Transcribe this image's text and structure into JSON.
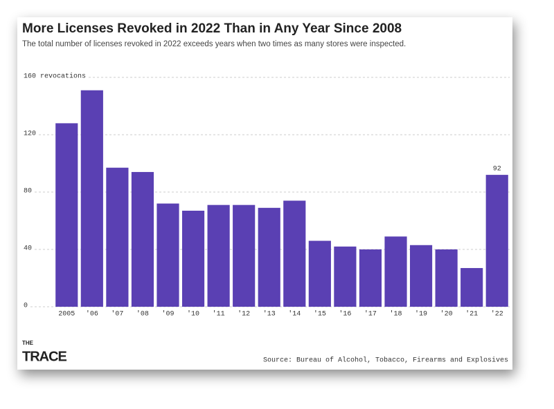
{
  "chart_data": {
    "type": "bar",
    "title": "More Licenses Revoked in 2022 Than in Any Year Since 2008",
    "subtitle": "The total number of licenses revoked in 2022 exceeds years when two times as many stores were inspected.",
    "categories": [
      "2005",
      "'06",
      "'07",
      "'08",
      "'09",
      "'10",
      "'11",
      "'12",
      "'13",
      "'14",
      "'15",
      "'16",
      "'17",
      "'18",
      "'19",
      "'20",
      "'21",
      "'22"
    ],
    "values": [
      128,
      151,
      97,
      94,
      72,
      67,
      71,
      71,
      69,
      74,
      46,
      42,
      40,
      49,
      43,
      40,
      27,
      92
    ],
    "value_labels": [
      null,
      null,
      null,
      null,
      null,
      null,
      null,
      null,
      null,
      null,
      null,
      null,
      null,
      null,
      null,
      null,
      null,
      "92"
    ],
    "color": "#5a40b3",
    "ylim": [
      0,
      160
    ],
    "yticks": [
      0,
      40,
      80,
      120,
      {
        "value": 160,
        "label": "160 revocations"
      }
    ],
    "grid": true,
    "source": "Source: Bureau of Alcohol, Tobacco, Firearms and Explosives",
    "logo": {
      "small": "THE",
      "large": "TRACE"
    }
  }
}
